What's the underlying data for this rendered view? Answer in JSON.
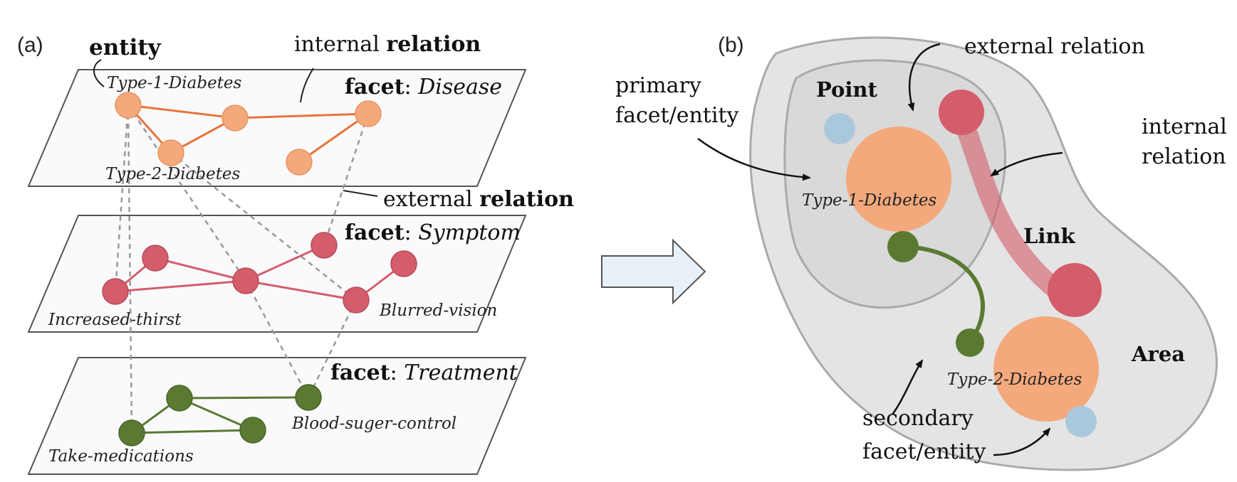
{
  "panel_a": {
    "label": "(a)",
    "annotations": {
      "entity": "entity",
      "internal": "internal ",
      "internal_bold": "relation",
      "external": "external ",
      "external_bold": "relation"
    },
    "facet_word": "facet",
    "facet_sep": ": ",
    "facets": {
      "disease": "Disease",
      "symptom": "Symptom",
      "treatment": "Treatment"
    },
    "entities": {
      "type1": "Type-1-Diabetes",
      "type2": "Type-2-Diabetes",
      "thirst": "Increased-thirst",
      "blurred": "Blurred-vision",
      "medications": "Take-medications",
      "blood": "Blood-suger-control"
    }
  },
  "panel_b": {
    "label": "(b)",
    "point": "Point",
    "link": "Link",
    "area": "Area",
    "external_relation": "external relation",
    "internal_line1": "internal",
    "internal_line2": "relation",
    "primary_line1": "primary",
    "primary_line2": "facet/entity",
    "secondary_line1": "secondary",
    "secondary_line2": "facet/entity",
    "type1": "Type-1-Diabetes",
    "type2": "Type-2-Diabetes"
  },
  "colors": {
    "disease": "#f4a97c",
    "disease_line": "#e8743b",
    "symptom": "#d45d6b",
    "treatment": "#5a7a32",
    "primary_small": "#aac8dc",
    "area_fill": "#e4e4e4",
    "plane_fill": "#fafafc"
  }
}
